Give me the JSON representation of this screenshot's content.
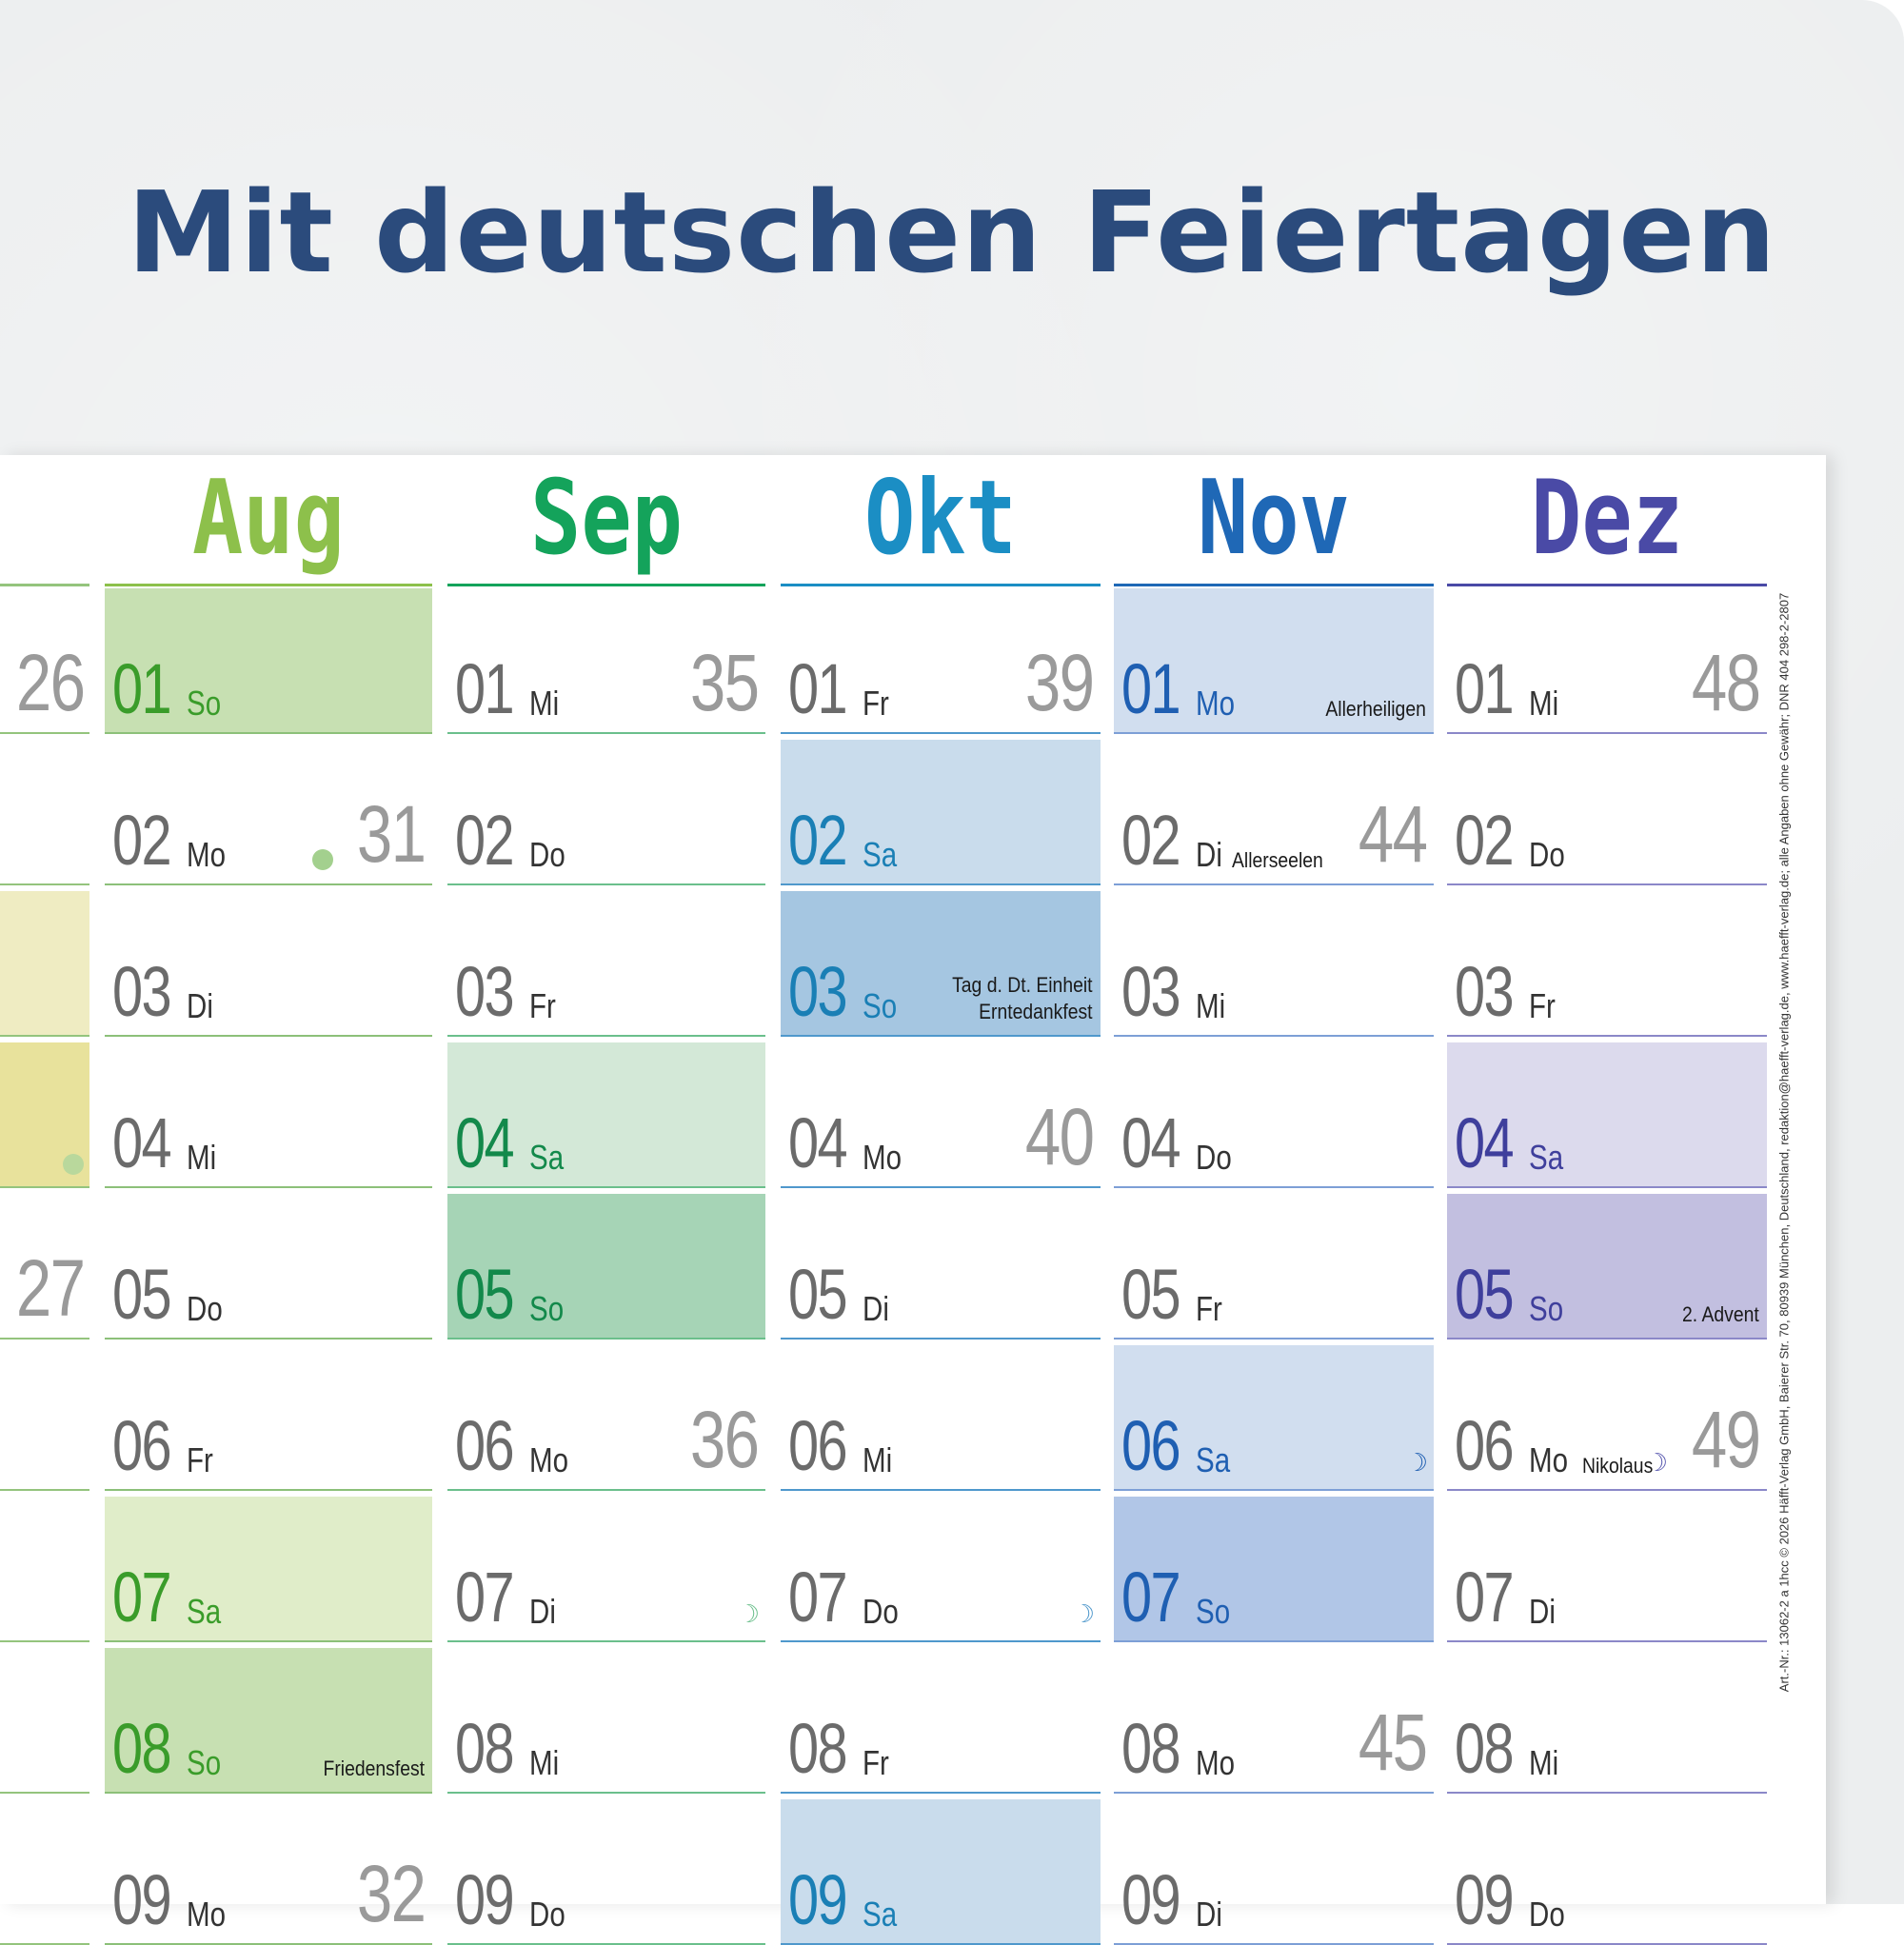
{
  "headline": "Mit deutschen Feiertagen",
  "side_print": "Art.-Nr.: 13062-2 a 1hcc © 2026 Häfft-Verlag GmbH, Baierer Str. 70, 80939 München, Deutschland, redaktion@haefft-verlag.de, www.haefft-verlag.de; alle Angaben ohne Gewähr; DNR 404 298-2-2807",
  "colors": {
    "headline": "#2b4b7c",
    "background": "#eceeef",
    "sheet": "#ffffff"
  },
  "partial_column": {
    "rules": "#94c47d",
    "cells": [
      {
        "week": "26",
        "fill": null
      },
      {
        "fill": null
      },
      {
        "fill": "#efecc2"
      },
      {
        "fill": "#e8e29c",
        "dot": "#b9d89c"
      },
      {
        "week": "27",
        "fill": null
      },
      {
        "fill": null
      },
      {
        "fill": null
      },
      {
        "fill": null
      },
      {
        "fill": null
      }
    ]
  },
  "months": [
    {
      "name": "Aug",
      "color": "#8dc04b",
      "num_color": "#3a9c2a",
      "rule": "#8cc079",
      "days": [
        {
          "d": "01",
          "wd": "So",
          "hl": true,
          "fill": "#c7e0b2"
        },
        {
          "d": "02",
          "wd": "Mo",
          "week": "31",
          "dot": "#a3d08e"
        },
        {
          "d": "03",
          "wd": "Di"
        },
        {
          "d": "04",
          "wd": "Mi"
        },
        {
          "d": "05",
          "wd": "Do"
        },
        {
          "d": "06",
          "wd": "Fr"
        },
        {
          "d": "07",
          "wd": "Sa",
          "hl": true,
          "fill": "#e0edc9"
        },
        {
          "d": "08",
          "wd": "So",
          "hl": true,
          "fill": "#c7e0b2",
          "holiday": "Friedensfest"
        },
        {
          "d": "09",
          "wd": "Mo",
          "week": "32"
        }
      ]
    },
    {
      "name": "Sep",
      "color": "#14a35b",
      "num_color": "#13894b",
      "rule": "#6bbf8c",
      "days": [
        {
          "d": "01",
          "wd": "Mi",
          "week": "35"
        },
        {
          "d": "02",
          "wd": "Do"
        },
        {
          "d": "03",
          "wd": "Fr"
        },
        {
          "d": "04",
          "wd": "Sa",
          "hl": true,
          "fill": "#d3e8d7"
        },
        {
          "d": "05",
          "wd": "So",
          "hl": true,
          "fill": "#a6d4b6"
        },
        {
          "d": "06",
          "wd": "Mo",
          "week": "36"
        },
        {
          "d": "07",
          "wd": "Di",
          "moon": "☽",
          "moon_color": "#6bbf8c"
        },
        {
          "d": "08",
          "wd": "Mi"
        },
        {
          "d": "09",
          "wd": "Do"
        }
      ]
    },
    {
      "name": "Okt",
      "color": "#1b8ec4",
      "num_color": "#1a7fb5",
      "rule": "#4f98cc",
      "days": [
        {
          "d": "01",
          "wd": "Fr",
          "week": "39"
        },
        {
          "d": "02",
          "wd": "Sa",
          "hl": true,
          "fill": "#c9dcec"
        },
        {
          "d": "03",
          "wd": "So",
          "hl": true,
          "fill": "#a5c6e1",
          "holiday": "Tag d. Dt. Einheit",
          "holiday2": "Erntedankfest"
        },
        {
          "d": "04",
          "wd": "Mo",
          "week": "40"
        },
        {
          "d": "05",
          "wd": "Di"
        },
        {
          "d": "06",
          "wd": "Mi"
        },
        {
          "d": "07",
          "wd": "Do",
          "moon": "☽",
          "moon_color": "#4f98cc"
        },
        {
          "d": "08",
          "wd": "Fr"
        },
        {
          "d": "09",
          "wd": "Sa",
          "hl": true,
          "fill": "#c9dcec"
        }
      ]
    },
    {
      "name": "Nov",
      "color": "#1f68b6",
      "num_color": "#1f5fb2",
      "rule": "#7d9fd6",
      "days": [
        {
          "d": "01",
          "wd": "Mo",
          "hl": true,
          "fill": "#d1deef",
          "holiday": "Allerheiligen"
        },
        {
          "d": "02",
          "wd": "Di",
          "week": "44",
          "holiday": "Allerseelen",
          "holiday_mid": true
        },
        {
          "d": "03",
          "wd": "Mi"
        },
        {
          "d": "04",
          "wd": "Do"
        },
        {
          "d": "05",
          "wd": "Fr"
        },
        {
          "d": "06",
          "wd": "Sa",
          "hl": true,
          "fill": "#d1deef",
          "moon": "☽",
          "moon_color": "#1f5fb2"
        },
        {
          "d": "07",
          "wd": "So",
          "hl": true,
          "fill": "#b1c6e7"
        },
        {
          "d": "08",
          "wd": "Mo",
          "week": "45"
        },
        {
          "d": "09",
          "wd": "Di"
        }
      ]
    },
    {
      "name": "Dez",
      "color": "#4a4aa6",
      "num_color": "#3f3f9c",
      "rule": "#8b88c8",
      "days": [
        {
          "d": "01",
          "wd": "Mi",
          "week": "48"
        },
        {
          "d": "02",
          "wd": "Do"
        },
        {
          "d": "03",
          "wd": "Fr"
        },
        {
          "d": "04",
          "wd": "Sa",
          "hl": true,
          "fill": "#dcdaed"
        },
        {
          "d": "05",
          "wd": "So",
          "hl": true,
          "fill": "#c2bfe0",
          "holiday": "2. Advent"
        },
        {
          "d": "06",
          "wd": "Mo",
          "week": "49",
          "holiday": "Nikolaus",
          "holiday_mid": true,
          "moon": "☽",
          "moon_color": "#5a5ab0"
        },
        {
          "d": "07",
          "wd": "Di"
        },
        {
          "d": "08",
          "wd": "Mi"
        },
        {
          "d": "09",
          "wd": "Do"
        }
      ]
    }
  ]
}
